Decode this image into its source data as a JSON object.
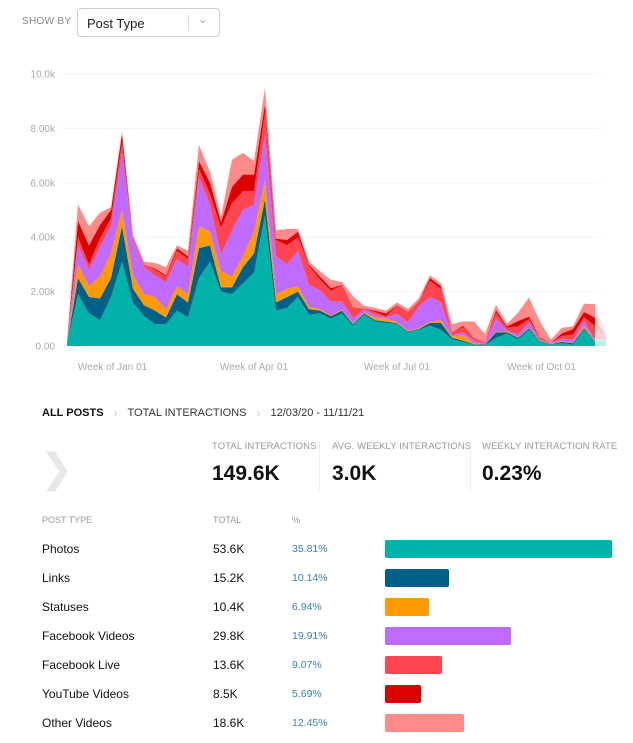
{
  "show_by": {
    "label": "SHOW BY",
    "selected": "Post Type",
    "chevron_icon": "chevron-down-icon"
  },
  "chart_data": {
    "type": "area",
    "stacked": true,
    "ylim": [
      0,
      10000
    ],
    "yticks": [
      {
        "v": 0,
        "label": "0.00"
      },
      {
        "v": 2000,
        "label": "2.00k"
      },
      {
        "v": 4000,
        "label": "4.00k"
      },
      {
        "v": 6000,
        "label": "6.00k"
      },
      {
        "v": 8000,
        "label": "8.00k"
      },
      {
        "v": 10000,
        "label": "10.0k"
      }
    ],
    "xticks": [
      {
        "date": "2021-01-01",
        "label": "Week of Jan 01"
      },
      {
        "date": "2021-04-01",
        "label": "Week of Apr 01"
      },
      {
        "date": "2021-07-01",
        "label": "Week of Jul 01"
      },
      {
        "date": "2021-10-01",
        "label": "Week of Oct 01"
      }
    ],
    "grid": true,
    "x": [
      "2020-12-03",
      "2020-12-10",
      "2020-12-17",
      "2020-12-24",
      "2020-12-31",
      "2021-01-07",
      "2021-01-14",
      "2021-01-21",
      "2021-01-28",
      "2021-02-04",
      "2021-02-11",
      "2021-02-18",
      "2021-02-25",
      "2021-03-04",
      "2021-03-11",
      "2021-03-18",
      "2021-03-25",
      "2021-04-01",
      "2021-04-08",
      "2021-04-15",
      "2021-04-22",
      "2021-04-29",
      "2021-05-06",
      "2021-05-13",
      "2021-05-20",
      "2021-05-27",
      "2021-06-03",
      "2021-06-10",
      "2021-06-17",
      "2021-06-24",
      "2021-07-01",
      "2021-07-08",
      "2021-07-15",
      "2021-07-22",
      "2021-07-29",
      "2021-08-05",
      "2021-08-12",
      "2021-08-19",
      "2021-08-26",
      "2021-09-02",
      "2021-09-09",
      "2021-09-16",
      "2021-09-23",
      "2021-09-30",
      "2021-10-07",
      "2021-10-14",
      "2021-10-21",
      "2021-10-28",
      "2021-11-04",
      "2021-11-11"
    ],
    "series": [
      {
        "name": "Photos",
        "color": "#00b2a9",
        "values": [
          100,
          1900,
          1200,
          950,
          1800,
          3100,
          1600,
          1100,
          800,
          800,
          1300,
          1050,
          2500,
          3100,
          2000,
          1900,
          2300,
          2700,
          4800,
          1300,
          1400,
          1800,
          1150,
          1200,
          1000,
          1200,
          750,
          1150,
          900,
          850,
          800,
          500,
          600,
          750,
          600,
          250,
          150,
          50,
          30,
          300,
          450,
          250,
          600,
          150,
          50,
          100,
          50,
          600,
          150,
          250
        ]
      },
      {
        "name": "Links",
        "color": "#006088",
        "values": [
          0,
          600,
          600,
          800,
          700,
          1300,
          500,
          400,
          500,
          250,
          600,
          550,
          1100,
          600,
          150,
          250,
          600,
          700,
          600,
          300,
          400,
          200,
          200,
          100,
          100,
          100,
          50,
          50,
          50,
          50,
          30,
          30,
          30,
          100,
          250,
          50,
          50,
          20,
          20,
          200,
          50,
          50,
          50,
          30,
          20,
          50,
          50,
          50,
          20,
          0
        ]
      },
      {
        "name": "Statuses",
        "color": "#ff9a00",
        "values": [
          0,
          500,
          400,
          800,
          900,
          600,
          500,
          400,
          500,
          300,
          300,
          300,
          800,
          500,
          600,
          400,
          400,
          800,
          700,
          300,
          300,
          200,
          100,
          50,
          30,
          30,
          30,
          30,
          100,
          100,
          50,
          30,
          30,
          50,
          100,
          50,
          200,
          30,
          20,
          20,
          20,
          20,
          30,
          20,
          20,
          20,
          20,
          100,
          20,
          0
        ]
      },
      {
        "name": "Facebook Videos",
        "color": "#bf6bff",
        "values": [
          50,
          700,
          600,
          1100,
          1000,
          2100,
          1300,
          1000,
          800,
          1000,
          1000,
          1000,
          1800,
          1000,
          600,
          1700,
          1700,
          1000,
          1700,
          1400,
          900,
          1300,
          800,
          700,
          500,
          300,
          200,
          100,
          100,
          50,
          300,
          300,
          800,
          900,
          650,
          50,
          100,
          100,
          20,
          500,
          50,
          100,
          200,
          30,
          20,
          100,
          100,
          200,
          50,
          0
        ]
      },
      {
        "name": "Facebook Live",
        "color": "#ff4550",
        "values": [
          20,
          300,
          200,
          300,
          300,
          400,
          100,
          100,
          200,
          200,
          300,
          300,
          300,
          400,
          1000,
          1000,
          700,
          500,
          800,
          600,
          700,
          500,
          700,
          400,
          400,
          600,
          400,
          50,
          100,
          50,
          300,
          400,
          200,
          600,
          500,
          100,
          200,
          100,
          50,
          200,
          100,
          300,
          100,
          50,
          20,
          100,
          200,
          100,
          500,
          50
        ]
      },
      {
        "name": "YouTube Videos",
        "color": "#dd0000",
        "values": [
          0,
          600,
          700,
          500,
          300,
          300,
          0,
          0,
          50,
          50,
          100,
          100,
          300,
          400,
          200,
          600,
          600,
          600,
          300,
          50,
          200,
          200,
          50,
          100,
          100,
          20,
          0,
          0,
          50,
          100,
          20,
          0,
          0,
          100,
          100,
          0,
          50,
          0,
          0,
          100,
          50,
          200,
          100,
          20,
          0,
          100,
          200,
          200,
          300,
          0
        ]
      },
      {
        "name": "Other Videos",
        "color": "#ff8a8a",
        "values": [
          50,
          600,
          700,
          450,
          100,
          100,
          100,
          100,
          200,
          300,
          100,
          200,
          600,
          400,
          200,
          1000,
          800,
          500,
          600,
          300,
          400,
          100,
          100,
          200,
          300,
          100,
          400,
          100,
          100,
          100,
          100,
          100,
          100,
          100,
          100,
          300,
          150,
          600,
          300,
          200,
          100,
          300,
          700,
          600,
          100,
          200,
          100,
          300,
          500,
          100
        ]
      }
    ]
  },
  "breadcrumb": {
    "items": [
      "ALL POSTS",
      "TOTAL INTERACTIONS",
      "12/03/20 - 11/11/21"
    ],
    "separator_icon": "chevron-right-icon"
  },
  "stats": [
    {
      "label": "TOTAL INTERACTIONS",
      "value": "149.6K"
    },
    {
      "label": "AVG. WEEKLY INTERACTIONS",
      "value": "3.0K"
    },
    {
      "label": "WEEKLY INTERACTION RATE",
      "value": "0.23%"
    }
  ],
  "table": {
    "headers": [
      "POST TYPE",
      "TOTAL",
      "%"
    ],
    "rows": [
      {
        "type": "Photos",
        "total": "53.6K",
        "pct": "35.81%",
        "share": 35.81,
        "color": "#00b2a9"
      },
      {
        "type": "Links",
        "total": "15.2K",
        "pct": "10.14%",
        "share": 10.14,
        "color": "#006088"
      },
      {
        "type": "Statuses",
        "total": "10.4K",
        "pct": "6.94%",
        "share": 6.94,
        "color": "#ff9a00"
      },
      {
        "type": "Facebook Videos",
        "total": "29.8K",
        "pct": "19.91%",
        "share": 19.91,
        "color": "#bf6bff"
      },
      {
        "type": "Facebook Live",
        "total": "13.6K",
        "pct": "9.07%",
        "share": 9.07,
        "color": "#ff4550"
      },
      {
        "type": "YouTube Videos",
        "total": "8.5K",
        "pct": "5.69%",
        "share": 5.69,
        "color": "#dd0000"
      },
      {
        "type": "Other Videos",
        "total": "18.6K",
        "pct": "12.45%",
        "share": 12.45,
        "color": "#ff8a8a"
      }
    ]
  }
}
